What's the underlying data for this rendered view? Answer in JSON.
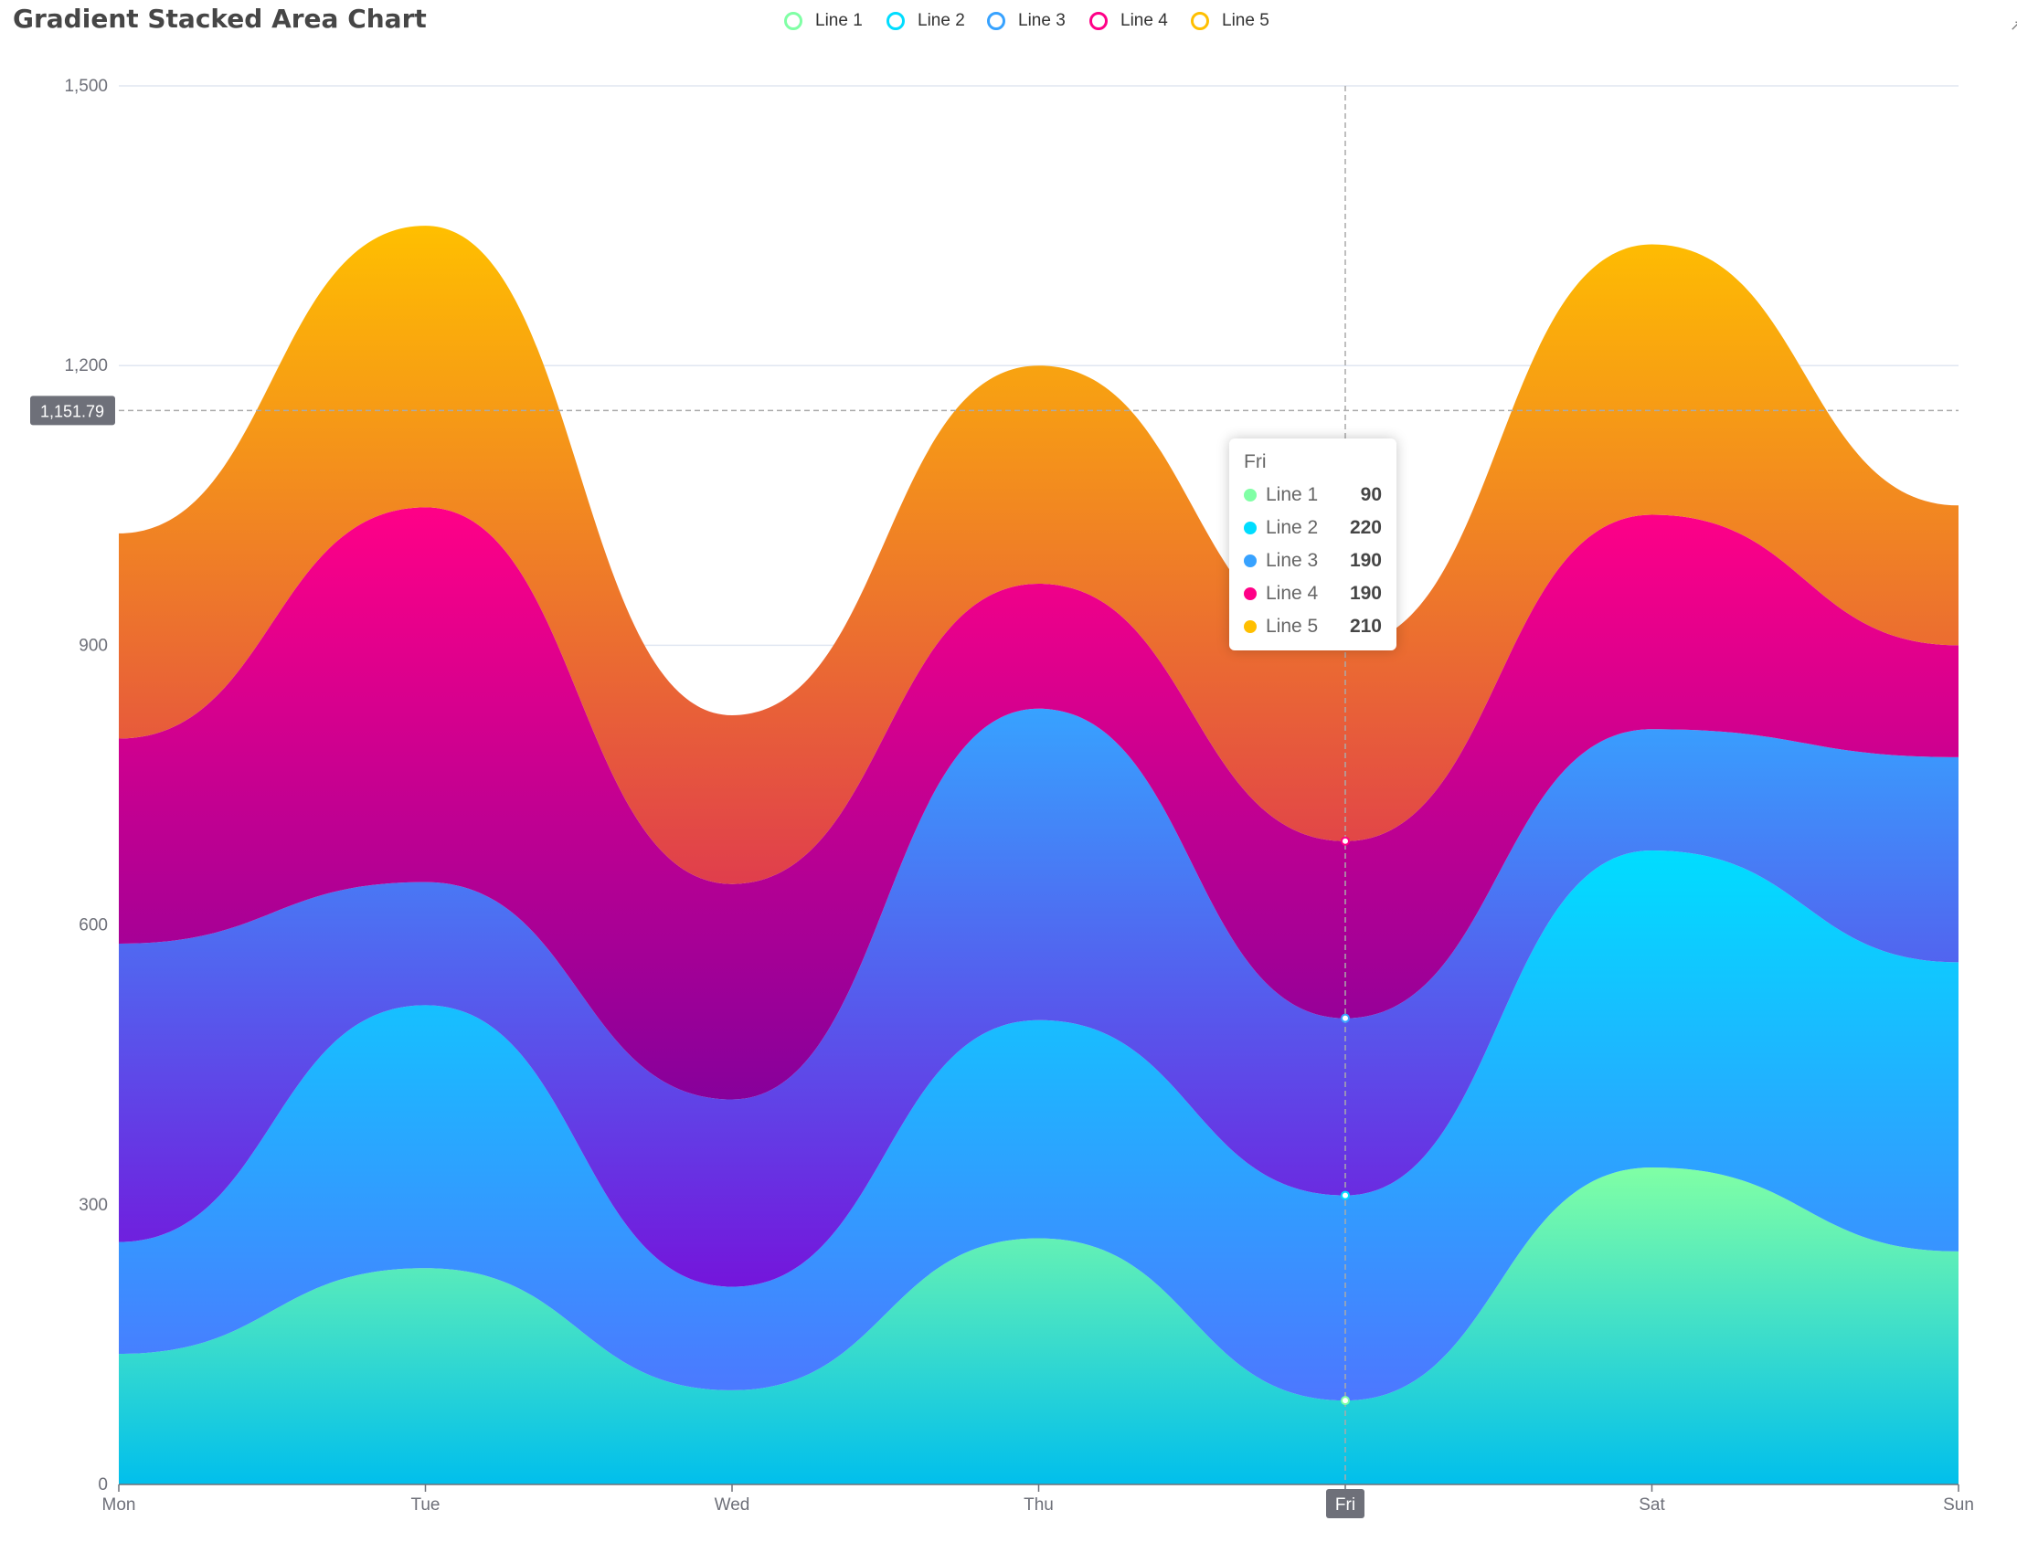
{
  "title": "Gradient Stacked Area Chart",
  "axis_pointer_value": "1,151.79",
  "tooltip": {
    "title": "Fri",
    "rows": [
      {
        "name": "Line 1",
        "value": "90",
        "color": "#80ffa5"
      },
      {
        "name": "Line 2",
        "value": "220",
        "color": "#00ddff"
      },
      {
        "name": "Line 3",
        "value": "190",
        "color": "#37a2ff"
      },
      {
        "name": "Line 4",
        "value": "190",
        "color": "#ff0087"
      },
      {
        "name": "Line 5",
        "value": "210",
        "color": "#ffbf00"
      }
    ]
  },
  "chart_data": {
    "type": "area",
    "stacked": true,
    "smooth": true,
    "title": "Gradient Stacked Area Chart",
    "categories": [
      "Mon",
      "Tue",
      "Wed",
      "Thu",
      "Fri",
      "Sat",
      "Sun"
    ],
    "ylim": [
      0,
      1500
    ],
    "yticks": [
      "0",
      "300",
      "600",
      "900",
      "1,200",
      "1,500"
    ],
    "highlighted_category": "Fri",
    "axis_pointer_value": 1151.79,
    "legend_position": "top",
    "series": [
      {
        "name": "Line 1",
        "values": [
          140,
          232,
          101,
          264,
          90,
          340,
          250
        ],
        "color": "#80ffa5",
        "gradient": [
          "#80ffa5",
          "#01bfec"
        ]
      },
      {
        "name": "Line 2",
        "values": [
          120,
          282,
          111,
          234,
          220,
          340,
          310
        ],
        "color": "#00ddff",
        "gradient": [
          "#00ddff",
          "#4d77ff"
        ]
      },
      {
        "name": "Line 3",
        "values": [
          320,
          132,
          201,
          334,
          190,
          130,
          220
        ],
        "color": "#37a2ff",
        "gradient": [
          "#37a2ff",
          "#7415db"
        ]
      },
      {
        "name": "Line 4",
        "values": [
          220,
          402,
          231,
          134,
          190,
          230,
          120
        ],
        "color": "#ff0087",
        "gradient": [
          "#ff0087",
          "#87009b"
        ]
      },
      {
        "name": "Line 5",
        "values": [
          220,
          302,
          181,
          234,
          210,
          290,
          150
        ],
        "color": "#ffbf00",
        "gradient": [
          "#ffbf00",
          "#e03e4c"
        ]
      }
    ]
  }
}
